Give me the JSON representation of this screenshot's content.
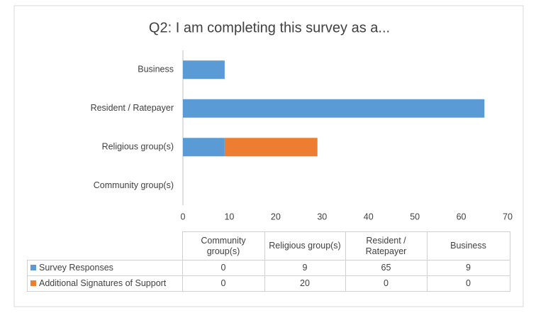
{
  "chart_data": {
    "type": "stacked_bar_horizontal",
    "title": "Q2: I am completing this survey as a...",
    "categories": [
      "Community group(s)",
      "Religious group(s)",
      "Resident / Ratepayer",
      "Business"
    ],
    "series": [
      {
        "name": "Survey Responses",
        "color": "#5b9bd5",
        "values": [
          0,
          9,
          65,
          9
        ]
      },
      {
        "name": "Additional Signatures of Support",
        "color": "#ed7d31",
        "values": [
          0,
          20,
          0,
          0
        ]
      }
    ],
    "xlim": [
      0,
      70
    ],
    "xticks": [
      0,
      10,
      20,
      30,
      40,
      50,
      60,
      70
    ],
    "grid": false,
    "data_table": true
  }
}
